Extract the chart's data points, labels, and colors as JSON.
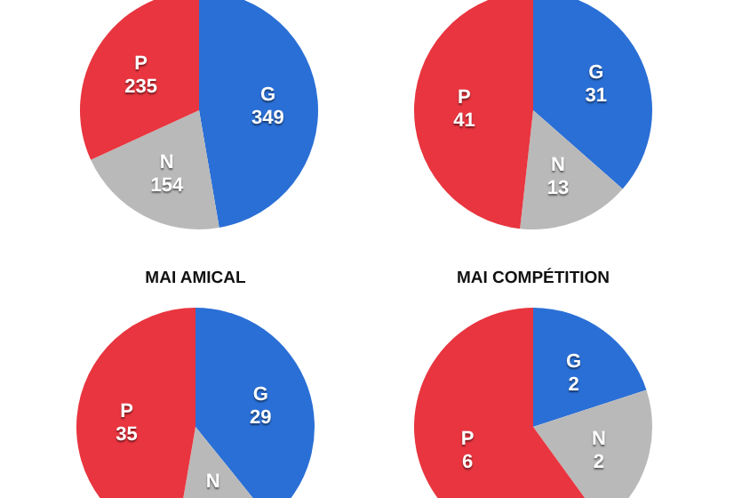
{
  "chart_data": [
    {
      "type": "pie",
      "categories": [
        "G",
        "N",
        "P"
      ],
      "values": [
        349,
        154,
        235
      ],
      "colors": [
        "#2a6fd6",
        "#b9b9b9",
        "#e8353f"
      ],
      "data_labels": true
    },
    {
      "type": "pie",
      "categories": [
        "G",
        "N",
        "P"
      ],
      "values": [
        31,
        13,
        41
      ],
      "colors": [
        "#2a6fd6",
        "#b9b9b9",
        "#e8353f"
      ],
      "data_labels": true
    },
    {
      "type": "pie",
      "title": "MAI AMICAL",
      "categories": [
        "G",
        "N",
        "P"
      ],
      "values": [
        29,
        10,
        35
      ],
      "colors": [
        "#2a6fd6",
        "#b9b9b9",
        "#e8353f"
      ],
      "value_labels": [
        "29",
        null,
        "35"
      ]
    },
    {
      "type": "pie",
      "title": "MAI COMPÉTITION",
      "categories": [
        "G",
        "N",
        "P"
      ],
      "values": [
        2,
        2,
        6
      ],
      "colors": [
        "#2a6fd6",
        "#b9b9b9",
        "#e8353f"
      ],
      "data_labels": true
    }
  ]
}
